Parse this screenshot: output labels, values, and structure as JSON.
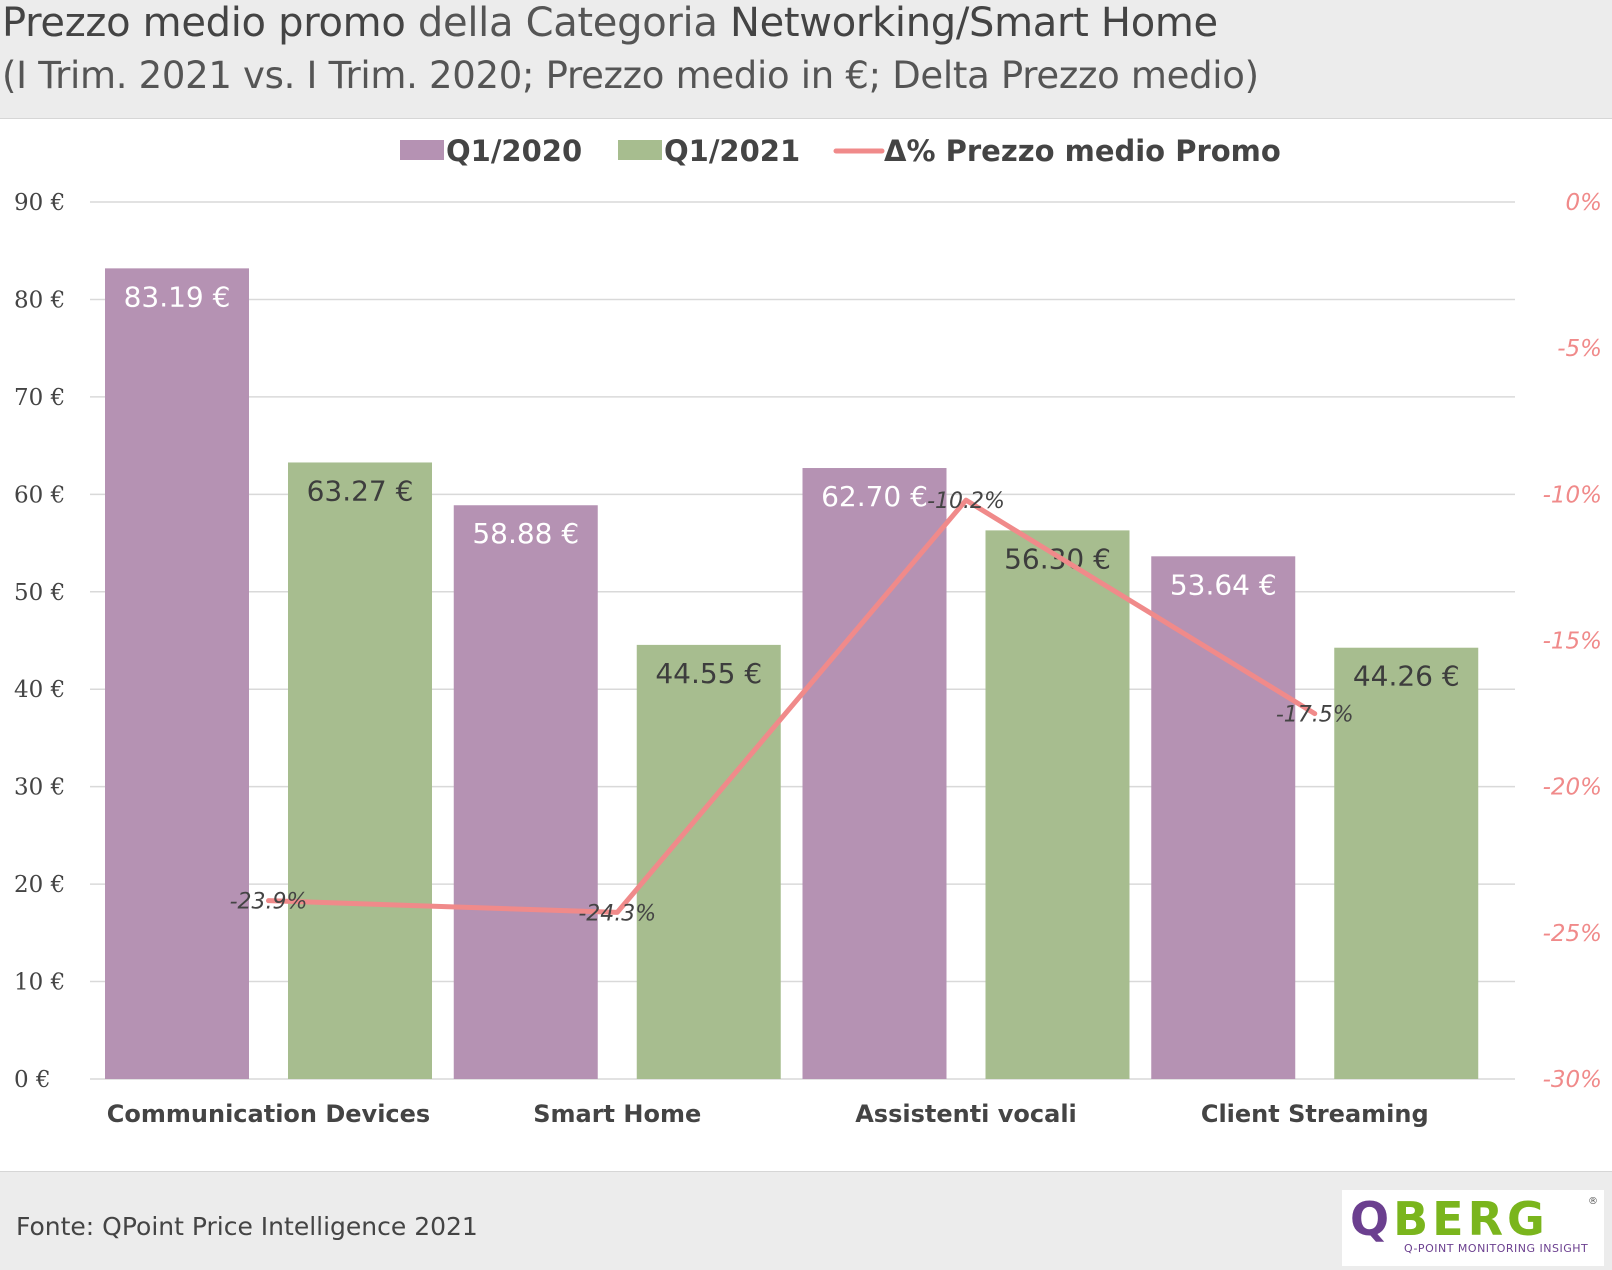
{
  "header": {
    "title_bold_1": "Prezzo medio promo",
    "title_light": " della Categoria ",
    "title_bold_2": "Networking/Smart Home",
    "subtitle": "(I Trim. 2021 vs. I Trim. 2020; Prezzo medio in €; Delta Prezzo medio)"
  },
  "colors": {
    "q1_2020": "#b592b3",
    "q1_2021": "#a7bd8f",
    "delta_line": "#f08a8a",
    "right_axis": "#f08a8a",
    "grid": "#d9d9d9"
  },
  "chart_data": {
    "type": "bar",
    "categories": [
      "Communication Devices",
      "Smart Home",
      "Assistenti vocali",
      "Client Streaming"
    ],
    "series": [
      {
        "name": "Q1/2020",
        "values": [
          83.19,
          58.88,
          62.7,
          53.64
        ],
        "labels": [
          "83.19 €",
          "58.88 €",
          "62.70 €",
          "53.64 €"
        ]
      },
      {
        "name": "Q1/2021",
        "values": [
          63.27,
          44.55,
          56.3,
          44.26
        ],
        "labels": [
          "63.27 €",
          "44.55 €",
          "56.30 €",
          "44.26 €"
        ]
      }
    ],
    "line_series": {
      "name": "Δ% Prezzo medio Promo",
      "values": [
        -23.9,
        -24.3,
        -10.2,
        -17.5
      ],
      "labels": [
        "-23.9%",
        "-24.3%",
        "-10.2%",
        "-17.5%"
      ]
    },
    "y_left": {
      "ylim": [
        0,
        90
      ],
      "ticks": [
        0,
        10,
        20,
        30,
        40,
        50,
        60,
        70,
        80,
        90
      ],
      "tick_labels": [
        "0 €",
        "10 €",
        "20 €",
        "30 €",
        "40 €",
        "50 €",
        "60 €",
        "70 €",
        "80 €",
        "90 €"
      ]
    },
    "y_right": {
      "ylim": [
        -30,
        0
      ],
      "ticks": [
        0,
        -5,
        -10,
        -15,
        -20,
        -25,
        -30
      ],
      "tick_labels": [
        "0%",
        "-5%",
        "-10%",
        "-15%",
        "-20%",
        "-25%",
        "-30%"
      ]
    },
    "legend": "top-center",
    "grid": true
  },
  "footer": {
    "source": "Fonte: QPoint Price Intelligence 2021"
  },
  "logo": {
    "letter_q": "Q",
    "letters_rest": "BERG",
    "tagline": "Q-POINT MONITORING INSIGHT",
    "reg": "®"
  }
}
